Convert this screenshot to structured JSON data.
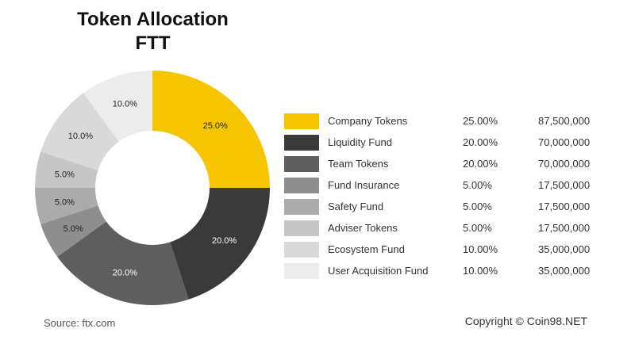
{
  "title_line1": "Token Allocation",
  "title_line2": "FTT",
  "source": "Source: ftx.com",
  "copyright": "Copyright © Coin98.NET",
  "chart_data": {
    "type": "pie",
    "title": "Token Allocation FTT",
    "legend_position": "right",
    "slices": [
      {
        "name": "Company Tokens",
        "percent": 25.0,
        "label": "25.0%",
        "pct_text": "25.00%",
        "amount": "87,500,000",
        "color": "#F7C500"
      },
      {
        "name": "Liquidity Fund",
        "percent": 20.0,
        "label": "20.0%",
        "pct_text": "20.00%",
        "amount": "70,000,000",
        "color": "#3A3A3A"
      },
      {
        "name": "Team Tokens",
        "percent": 20.0,
        "label": "20.0%",
        "pct_text": "20.00%",
        "amount": "70,000,000",
        "color": "#5E5E5E"
      },
      {
        "name": "Fund Insurance",
        "percent": 5.0,
        "label": "5.0%",
        "pct_text": "5.00%",
        "amount": "17,500,000",
        "color": "#8E8E8E"
      },
      {
        "name": "Safety Fund",
        "percent": 5.0,
        "label": "5.0%",
        "pct_text": "5.00%",
        "amount": "17,500,000",
        "color": "#ABABAB"
      },
      {
        "name": "Adviser Tokens",
        "percent": 5.0,
        "label": "5.0%",
        "pct_text": "5.00%",
        "amount": "17,500,000",
        "color": "#C6C6C6"
      },
      {
        "name": "Ecosystem Fund",
        "percent": 10.0,
        "label": "10.0%",
        "pct_text": "10.00%",
        "amount": "35,000,000",
        "color": "#D9D9D9"
      },
      {
        "name": "User Acquisition Fund",
        "percent": 10.0,
        "label": "10.0%",
        "pct_text": "10.00%",
        "amount": "35,000,000",
        "color": "#ECECEC"
      }
    ]
  }
}
